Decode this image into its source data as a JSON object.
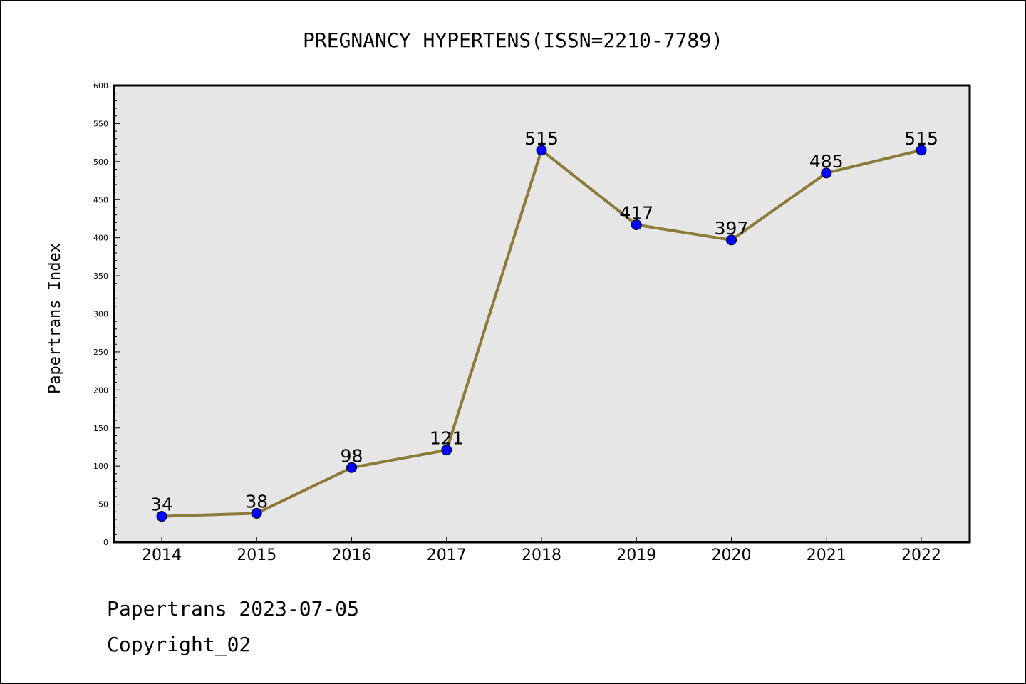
{
  "chart_data": {
    "type": "line",
    "title": "PREGNANCY HYPERTENS(ISSN=2210-7789)",
    "xlabel": "",
    "ylabel": "Papertrans Index",
    "categories": [
      "2014",
      "2015",
      "2016",
      "2017",
      "2018",
      "2019",
      "2020",
      "2021",
      "2022"
    ],
    "series": [
      {
        "values": [
          34,
          38,
          98,
          121,
          515,
          417,
          397,
          485,
          515
        ]
      }
    ],
    "data_labels": [
      "34",
      "38",
      "98",
      "121",
      "515",
      "417",
      "397",
      "485",
      "515"
    ],
    "ylim": [
      0,
      600
    ],
    "yticks": [
      "0",
      "50",
      "100",
      "150",
      "200",
      "250",
      "300",
      "350",
      "400",
      "450",
      "500",
      "550",
      "600"
    ],
    "grid": false,
    "line_color": "#8b7a3a",
    "marker_color": "#0000ff",
    "plot_background": "#e6e6e6"
  },
  "footer": {
    "line1": "Papertrans 2023-07-05",
    "line2": "Copyright_02"
  }
}
